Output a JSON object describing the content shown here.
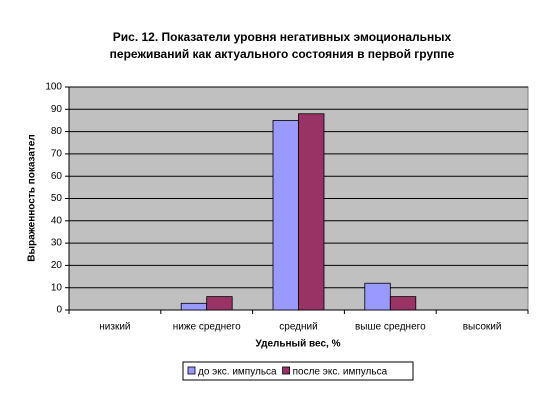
{
  "chart_data": {
    "type": "bar",
    "title": [
      "Рис. 12. Показатели уровня негативных эмоциональных",
      "переживаний как актуального состояния в первой группе"
    ],
    "x_label": "Удельный вес, %",
    "y_label": "Выраженность показател",
    "categories": [
      "низкий",
      "ниже среднего",
      "средний",
      "выше среднего",
      "высокий"
    ],
    "series": [
      {
        "name": "до экс. импульса",
        "color": "#9999ff",
        "values": [
          0,
          3,
          85,
          12,
          0
        ]
      },
      {
        "name": "после экс. импульса",
        "color": "#993366",
        "values": [
          0,
          6,
          88,
          6,
          0
        ]
      }
    ],
    "ylim": [
      0,
      100
    ],
    "yticks": [
      0,
      10,
      20,
      30,
      40,
      50,
      60,
      70,
      80,
      90,
      100
    ],
    "grid": true,
    "legend": "bottom"
  }
}
